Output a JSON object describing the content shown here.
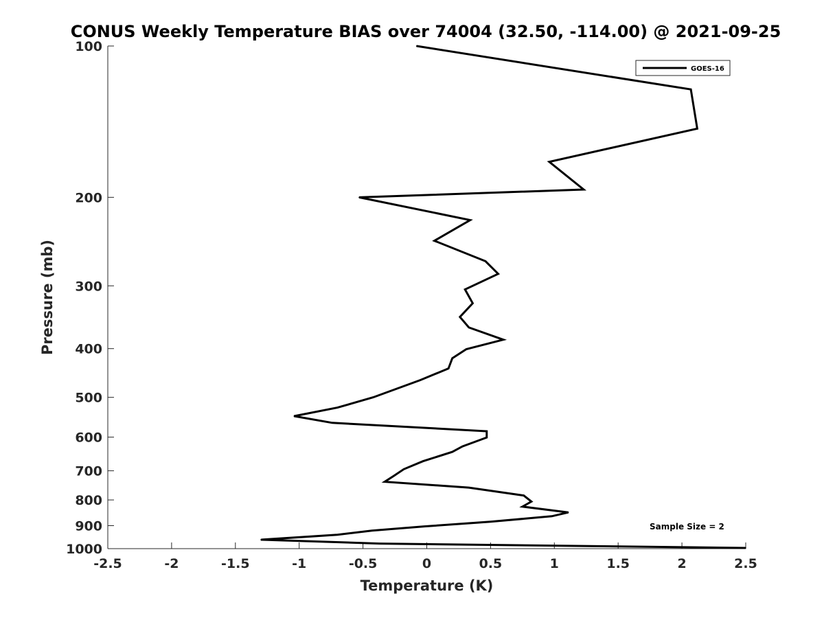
{
  "chart_data": {
    "type": "line",
    "title": "CONUS Weekly Temperature BIAS over 74004 (32.50, -114.00) @ 2021-09-25",
    "xlabel": "Temperature (K)",
    "ylabel": "Pressure (mb)",
    "xlim": [
      -2.5,
      2.5
    ],
    "ylim": [
      100,
      1000
    ],
    "y_scale": "log",
    "y_reversed": true,
    "x_ticks": [
      -2.5,
      -2,
      -1.5,
      -1,
      -0.5,
      0,
      0.5,
      1,
      1.5,
      2,
      2.5
    ],
    "x_tick_labels": [
      "-2.5",
      "-2",
      "-1.5",
      "-1",
      "-0.5",
      "0",
      "0.5",
      "1",
      "1.5",
      "2",
      "2.5"
    ],
    "y_ticks": [
      100,
      200,
      300,
      400,
      500,
      600,
      700,
      800,
      900,
      1000
    ],
    "y_tick_labels": [
      "100",
      "200",
      "300",
      "400",
      "500",
      "600",
      "700",
      "800",
      "900",
      "1000"
    ],
    "grid": false,
    "legend_position": "top-right",
    "series": [
      {
        "name": "GOES-16",
        "color": "#000000",
        "points": [
          {
            "x": -0.08,
            "y": 100
          },
          {
            "x": 2.07,
            "y": 122
          },
          {
            "x": 2.12,
            "y": 146
          },
          {
            "x": 0.96,
            "y": 170
          },
          {
            "x": 1.23,
            "y": 193
          },
          {
            "x": -0.53,
            "y": 200
          },
          {
            "x": 0.34,
            "y": 222
          },
          {
            "x": 0.06,
            "y": 244
          },
          {
            "x": 0.46,
            "y": 268
          },
          {
            "x": 0.56,
            "y": 284
          },
          {
            "x": 0.3,
            "y": 305
          },
          {
            "x": 0.36,
            "y": 325
          },
          {
            "x": 0.26,
            "y": 346
          },
          {
            "x": 0.33,
            "y": 363
          },
          {
            "x": 0.6,
            "y": 384
          },
          {
            "x": 0.31,
            "y": 401
          },
          {
            "x": 0.2,
            "y": 418
          },
          {
            "x": 0.17,
            "y": 438
          },
          {
            "x": -0.05,
            "y": 462
          },
          {
            "x": -0.42,
            "y": 500
          },
          {
            "x": -0.7,
            "y": 524
          },
          {
            "x": -1.04,
            "y": 545
          },
          {
            "x": -0.74,
            "y": 562
          },
          {
            "x": 0.47,
            "y": 584
          },
          {
            "x": 0.47,
            "y": 601
          },
          {
            "x": 0.28,
            "y": 626
          },
          {
            "x": 0.2,
            "y": 642
          },
          {
            "x": -0.03,
            "y": 670
          },
          {
            "x": -0.18,
            "y": 695
          },
          {
            "x": -0.26,
            "y": 717
          },
          {
            "x": -0.33,
            "y": 736
          },
          {
            "x": 0.33,
            "y": 756
          },
          {
            "x": 0.76,
            "y": 784
          },
          {
            "x": 0.82,
            "y": 806
          },
          {
            "x": 0.75,
            "y": 825
          },
          {
            "x": 1.11,
            "y": 847
          },
          {
            "x": 0.98,
            "y": 862
          },
          {
            "x": 0.5,
            "y": 884
          },
          {
            "x": -0.02,
            "y": 903
          },
          {
            "x": -0.43,
            "y": 921
          },
          {
            "x": -0.7,
            "y": 938
          },
          {
            "x": -1.3,
            "y": 960
          },
          {
            "x": -0.37,
            "y": 977
          },
          {
            "x": 2.5,
            "y": 997
          }
        ]
      }
    ],
    "annotations": [
      {
        "text": "Sample Size = 2"
      }
    ]
  }
}
